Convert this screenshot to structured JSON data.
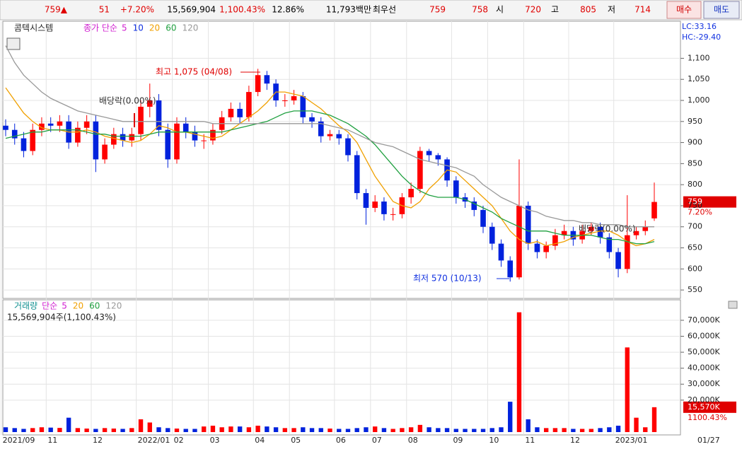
{
  "toolbar": {
    "items": [
      {
        "text": "759▲",
        "color": "#e00000"
      },
      {
        "text": "51",
        "color": "#e00000"
      },
      {
        "text": "+7.20%",
        "color": "#e00000"
      },
      {
        "text": "15,569,904",
        "color": "#000"
      },
      {
        "text": "1,100.43%",
        "color": "#e00000"
      },
      {
        "text": "12.86%",
        "color": "#000"
      },
      {
        "text": "11,793백만",
        "color": "#000"
      },
      {
        "text": "최우선",
        "color": "#000"
      },
      {
        "text": "759",
        "color": "#e00000"
      },
      {
        "text": "758",
        "color": "#e00000"
      },
      {
        "text": "시",
        "color": "#000"
      },
      {
        "text": "720",
        "color": "#e00000"
      },
      {
        "text": "고",
        "color": "#000"
      },
      {
        "text": "805",
        "color": "#e00000"
      },
      {
        "text": "저",
        "color": "#000"
      },
      {
        "text": "714",
        "color": "#e00000"
      }
    ],
    "buy": "매수",
    "sell": "매도"
  },
  "chart_data": {
    "type": "candlestick",
    "stock": "콤텍시스템",
    "ma_label": "종가 단순",
    "up_color": "#ff0000",
    "down_color": "#0022dd",
    "categories": [
      "2021/09",
      null,
      null,
      null,
      null,
      "11",
      null,
      null,
      null,
      null,
      "12",
      null,
      null,
      null,
      null,
      "2022/01",
      null,
      null,
      null,
      "02",
      null,
      null,
      null,
      "03",
      null,
      null,
      null,
      null,
      "04",
      null,
      null,
      null,
      "05",
      null,
      null,
      null,
      null,
      "06",
      null,
      null,
      null,
      "07",
      null,
      null,
      null,
      "08",
      null,
      null,
      null,
      null,
      "09",
      null,
      null,
      null,
      "10",
      null,
      null,
      null,
      "11",
      null,
      null,
      null,
      null,
      "12",
      null,
      null,
      null,
      null,
      "2023/01",
      null,
      null,
      null,
      null
    ],
    "end_date": "01/27",
    "open": [
      940,
      930,
      910,
      880,
      930,
      945,
      940,
      950,
      900,
      935,
      950,
      860,
      895,
      920,
      905,
      920,
      985,
      1000,
      930,
      860,
      945,
      925,
      905,
      905,
      930,
      960,
      980,
      960,
      1020,
      1060,
      1040,
      1000,
      1000,
      1010,
      960,
      950,
      915,
      920,
      910,
      870,
      780,
      745,
      760,
      730,
      730,
      770,
      790,
      880,
      870,
      860,
      810,
      770,
      760,
      740,
      700,
      660,
      620,
      580,
      750,
      660,
      640,
      655,
      680,
      690,
      670,
      690,
      700,
      675,
      640,
      600,
      680,
      690,
      720
    ],
    "high": [
      955,
      945,
      925,
      945,
      960,
      960,
      965,
      965,
      950,
      965,
      965,
      910,
      935,
      935,
      935,
      1000,
      1040,
      1015,
      945,
      960,
      960,
      940,
      920,
      945,
      975,
      995,
      995,
      1035,
      1075,
      1070,
      1050,
      1015,
      1025,
      1020,
      970,
      960,
      930,
      930,
      920,
      880,
      790,
      775,
      770,
      745,
      780,
      805,
      890,
      885,
      875,
      865,
      820,
      780,
      770,
      750,
      710,
      670,
      630,
      860,
      760,
      670,
      665,
      695,
      705,
      700,
      705,
      710,
      710,
      685,
      650,
      775,
      700,
      715,
      805
    ],
    "low": [
      915,
      895,
      865,
      870,
      915,
      925,
      925,
      885,
      890,
      920,
      830,
      850,
      885,
      890,
      890,
      905,
      960,
      915,
      840,
      850,
      910,
      890,
      885,
      895,
      920,
      950,
      945,
      950,
      1010,
      1025,
      985,
      985,
      990,
      945,
      935,
      900,
      905,
      895,
      855,
      765,
      705,
      735,
      715,
      715,
      720,
      755,
      780,
      855,
      845,
      795,
      755,
      745,
      725,
      685,
      645,
      605,
      570,
      575,
      645,
      625,
      625,
      645,
      670,
      655,
      660,
      680,
      660,
      625,
      580,
      590,
      670,
      680,
      714
    ],
    "close": [
      930,
      910,
      880,
      930,
      945,
      940,
      950,
      900,
      935,
      950,
      860,
      895,
      920,
      905,
      920,
      985,
      1000,
      930,
      860,
      945,
      925,
      905,
      905,
      930,
      960,
      980,
      960,
      1020,
      1060,
      1040,
      1000,
      1000,
      1010,
      960,
      950,
      915,
      920,
      910,
      870,
      780,
      745,
      760,
      730,
      730,
      770,
      790,
      880,
      870,
      860,
      810,
      770,
      760,
      740,
      700,
      660,
      620,
      580,
      750,
      660,
      640,
      655,
      680,
      690,
      670,
      690,
      700,
      675,
      640,
      600,
      680,
      690,
      700,
      759
    ],
    "ma_legend": [
      {
        "name": "5",
        "color": "#d020d0"
      },
      {
        "name": "10",
        "color": "#1030e0"
      }
    ],
    "ma": [
      {
        "name": "20",
        "color": "#f0a000",
        "values": [
          1030,
          1000,
          970,
          950,
          935,
          930,
          930,
          925,
          925,
          930,
          925,
          915,
          910,
          905,
          900,
          905,
          920,
          940,
          935,
          925,
          925,
          920,
          915,
          910,
          915,
          930,
          945,
          960,
          975,
          995,
          1020,
          1020,
          1015,
          1010,
          995,
          980,
          960,
          940,
          925,
          900,
          860,
          820,
          790,
          760,
          750,
          745,
          760,
          790,
          810,
          835,
          830,
          810,
          790,
          770,
          750,
          720,
          690,
          670,
          660,
          665,
          655,
          660,
          665,
          675,
          680,
          685,
          690,
          690,
          680,
          665,
          655,
          660,
          670
        ]
      },
      {
        "name": "60",
        "color": "#20a040",
        "values": [
          910,
          915,
          920,
          925,
          925,
          930,
          930,
          930,
          930,
          925,
          920,
          920,
          915,
          915,
          915,
          915,
          920,
          925,
          925,
          925,
          925,
          925,
          925,
          925,
          925,
          930,
          935,
          940,
          945,
          950,
          960,
          970,
          975,
          975,
          975,
          970,
          965,
          955,
          945,
          930,
          915,
          895,
          870,
          845,
          820,
          800,
          785,
          775,
          770,
          770,
          770,
          765,
          755,
          745,
          735,
          720,
          710,
          700,
          690,
          690,
          690,
          685,
          680,
          680,
          680,
          680,
          675,
          670,
          670,
          665,
          660,
          660,
          665
        ]
      },
      {
        "name": "120",
        "color": "#999999",
        "values": [
          1130,
          1090,
          1060,
          1040,
          1020,
          1005,
          995,
          985,
          975,
          970,
          965,
          960,
          955,
          950,
          950,
          950,
          950,
          950,
          950,
          950,
          950,
          950,
          950,
          945,
          945,
          945,
          945,
          945,
          945,
          945,
          945,
          945,
          945,
          945,
          945,
          945,
          940,
          935,
          930,
          920,
          910,
          900,
          895,
          890,
          880,
          870,
          860,
          855,
          850,
          845,
          840,
          830,
          820,
          800,
          785,
          770,
          760,
          750,
          740,
          735,
          725,
          720,
          715,
          715,
          710,
          710,
          705,
          705,
          705,
          700,
          700,
          700,
          700
        ]
      }
    ],
    "ylim": [
      530,
      1188
    ],
    "yticks": [
      550,
      600,
      650,
      700,
      750,
      800,
      850,
      900,
      950,
      {
        "value": 1000,
        "label": "1,000"
      },
      {
        "value": 1050,
        "label": "1,050"
      },
      {
        "value": 1100,
        "label": "1,100"
      }
    ],
    "lc": "LC:33.16",
    "hc": "HC:-29.40",
    "last_price": 759,
    "last_change": "7.20%",
    "annotations": {
      "high": "최고 1,075 (04/08)",
      "low": "최저 570 (10/13)",
      "ex_div_1": "배당락(0.00%)",
      "ex_div_2": "배당락(0.00%)"
    },
    "volume": {
      "label": "거래량",
      "ma_label": "단순",
      "ma_legend": [
        {
          "name": "5",
          "color": "#d020d0"
        },
        {
          "name": "20",
          "color": "#f0a000"
        },
        {
          "name": "60",
          "color": "#20a040"
        },
        {
          "name": "120",
          "color": "#999999"
        }
      ],
      "summary": "15,569,904주(1,100.43%)",
      "values": [
        3000,
        2500,
        2000,
        2500,
        3000,
        2800,
        2600,
        9000,
        2500,
        2200,
        2000,
        2500,
        2200,
        2000,
        2500,
        8000,
        6000,
        3000,
        2500,
        2200,
        2000,
        2000,
        3500,
        4000,
        3000,
        3500,
        3500,
        3000,
        4000,
        3500,
        3000,
        2500,
        2500,
        3000,
        2500,
        2500,
        2200,
        2000,
        2000,
        2500,
        3000,
        3500,
        2500,
        2000,
        2500,
        3000,
        4500,
        3000,
        2500,
        2500,
        2000,
        2000,
        2000,
        2000,
        2500,
        3000,
        19000,
        75000,
        8000,
        3000,
        2500,
        2500,
        2500,
        2000,
        2000,
        2000,
        2500,
        3000,
        4000,
        53000,
        9000,
        3000,
        15570
      ],
      "ylim": [
        0,
        82800
      ],
      "yticks": [
        {
          "value": 20000,
          "label": "20,000K"
        },
        {
          "value": 30000,
          "label": "30,000K"
        },
        {
          "value": 40000,
          "label": "40,000K"
        },
        {
          "value": 50000,
          "label": "50,000K"
        },
        {
          "value": 60000,
          "label": "60,000K"
        },
        {
          "value": 70000,
          "label": "70,000K"
        }
      ],
      "last_label": "15,570K",
      "last_pct": "1100.43%"
    }
  }
}
